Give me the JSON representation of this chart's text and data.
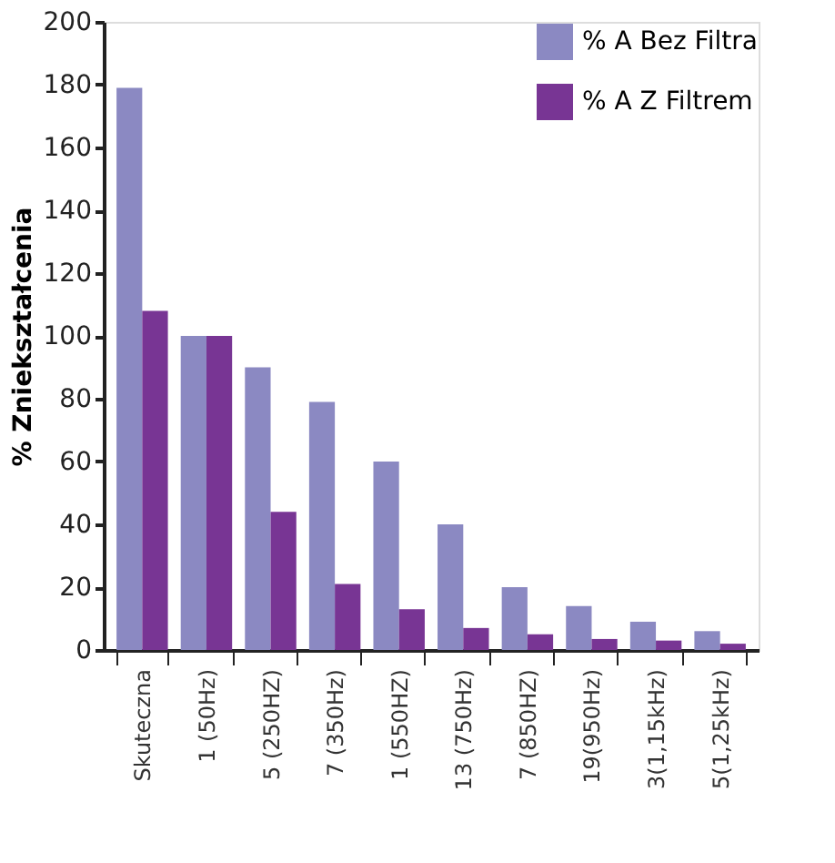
{
  "chart_data": {
    "type": "bar",
    "ylabel": "% Zniekształcenia",
    "categories": [
      "Skuteczna",
      "1 (50Hz)",
      "5 (250HZ)",
      "7 (350Hz)",
      "1 (550HZ)",
      "13 (750Hz)",
      "7 (850HZ)",
      "19(950Hz)",
      "3(1,15kHz)",
      "5(1,25kHz)"
    ],
    "series": [
      {
        "name": "% A Bez Filtra",
        "color": "#8b89c2",
        "values": [
          179,
          100,
          90,
          79,
          60,
          40,
          20,
          14,
          9,
          6
        ]
      },
      {
        "name": "% A Z Filtrem",
        "color": "#783594",
        "values": [
          108,
          100,
          44,
          21,
          13,
          7,
          5,
          3.5,
          3,
          2
        ]
      }
    ],
    "ylim": [
      0,
      200
    ],
    "yticks": [
      0,
      20,
      40,
      60,
      80,
      100,
      120,
      140,
      160,
      180,
      200
    ],
    "grid": false,
    "legend": "top right"
  }
}
